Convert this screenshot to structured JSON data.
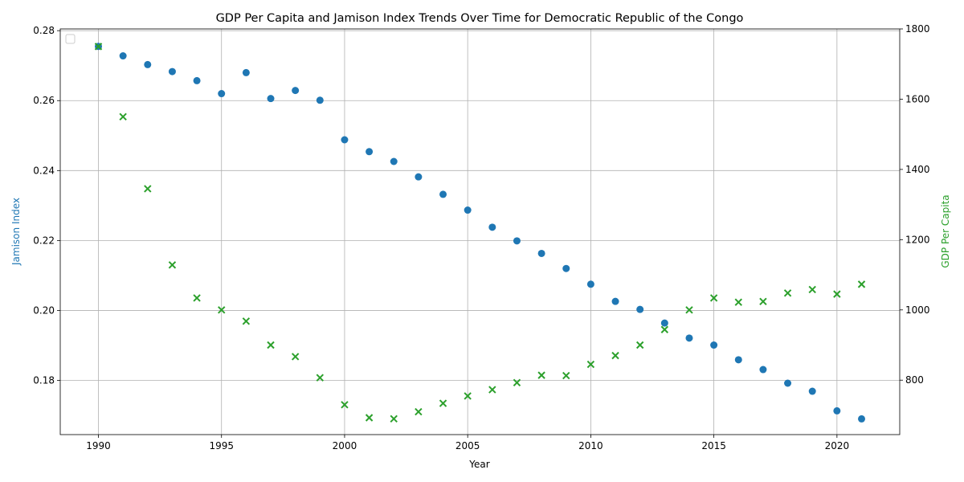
{
  "chart_data": {
    "type": "scatter",
    "title": "GDP Per Capita and Jamison Index Trends Over Time for Democratic Republic of the Congo",
    "xlabel": "Year",
    "ylabel_left": "Jamison Index",
    "ylabel_right": "GDP Per Capita",
    "grid": true,
    "legend": "top-left (empty)",
    "xlim": [
      1988.45,
      1992.55
    ],
    "x_ticks": [
      1990,
      1995,
      2000,
      2005,
      2010,
      2015,
      2020
    ],
    "ylim_left": [
      0.1645,
      0.2805
    ],
    "y_ticks_left": [
      0.18,
      0.2,
      0.22,
      0.24,
      0.26,
      0.28
    ],
    "ylim_right": [
      645,
      1800
    ],
    "y_ticks_right": [
      800,
      1000,
      1200,
      1400,
      1600,
      1800
    ],
    "x": [
      1990,
      1991,
      1992,
      1993,
      1994,
      1995,
      1996,
      1997,
      1998,
      1999,
      2000,
      2001,
      2002,
      2003,
      2004,
      2005,
      2006,
      2007,
      2008,
      2009,
      2010,
      2011,
      2012,
      2013,
      2014,
      2015,
      2016,
      2017,
      2018,
      2019,
      2020,
      2021
    ],
    "series": [
      {
        "axis": "left",
        "marker": "circle",
        "color": "#1f77b4",
        "values": [
          0.2755,
          0.2728,
          0.2703,
          0.2683,
          0.2657,
          0.262,
          0.268,
          0.2606,
          0.2629,
          0.2601,
          0.2488,
          0.2454,
          0.2426,
          0.2382,
          0.2332,
          0.2287,
          0.2238,
          0.2199,
          0.2163,
          0.212,
          0.2075,
          0.2026,
          0.2003,
          0.1964,
          0.1921,
          0.1901,
          0.1859,
          0.1831,
          0.1792,
          0.1769,
          0.1713,
          0.169
        ]
      },
      {
        "axis": "right",
        "marker": "x",
        "color": "#2ca02c",
        "values": [
          1750,
          1550,
          1345,
          1128,
          1034,
          1000,
          968,
          900,
          867,
          807,
          730,
          693,
          690,
          710,
          734,
          755,
          773,
          793,
          814,
          813,
          845,
          870,
          900,
          944,
          1000,
          1034,
          1022,
          1024,
          1048,
          1058,
          1045,
          1073
        ]
      }
    ]
  },
  "colors": {
    "jamison": "#1f77b4",
    "gdp": "#2ca02c",
    "grid": "#b0b0b0"
  }
}
